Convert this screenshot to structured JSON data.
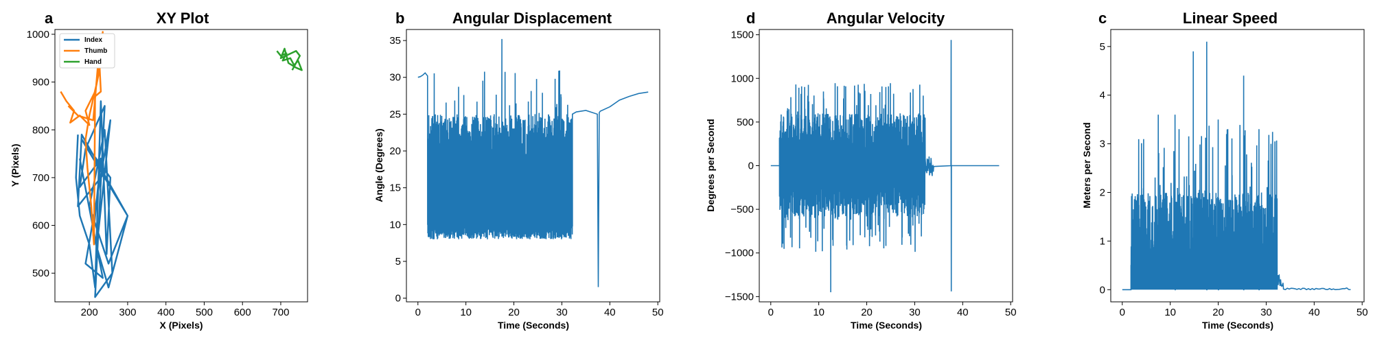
{
  "chart_data": [
    {
      "panel": "a",
      "type": "line",
      "title": "XY Plot",
      "xlabel": "X (Pixels)",
      "ylabel": "Y (Pixels)",
      "xlim": [
        110,
        770
      ],
      "ylim": [
        440,
        1010
      ],
      "xticks": [
        200,
        300,
        400,
        500,
        600,
        700
      ],
      "yticks": [
        500,
        600,
        700,
        800,
        900,
        1000
      ],
      "legend": "top-left",
      "series": [
        {
          "name": "Index",
          "color": "#1f77b4",
          "points": [
            [
              170,
              790
            ],
            [
              165,
              700
            ],
            [
              175,
              620
            ],
            [
              200,
              560
            ],
            [
              215,
              470
            ],
            [
              230,
              860
            ],
            [
              245,
              540
            ],
            [
              255,
              700
            ],
            [
              180,
              780
            ],
            [
              300,
              620
            ],
            [
              250,
              520
            ],
            [
              200,
              640
            ],
            [
              240,
              800
            ],
            [
              260,
              500
            ],
            [
              215,
              450
            ],
            [
              240,
              850
            ],
            [
              190,
              760
            ],
            [
              175,
              680
            ],
            [
              230,
              740
            ],
            [
              210,
              580
            ],
            [
              250,
              470
            ],
            [
              300,
              620
            ],
            [
              180,
              790
            ],
            [
              170,
              640
            ],
            [
              240,
              710
            ],
            [
              220,
              560
            ],
            [
              255,
              820
            ],
            [
              190,
              520
            ],
            [
              235,
              490
            ],
            [
              175,
              740
            ]
          ]
        },
        {
          "name": "Thumb",
          "color": "#ff7f0e",
          "points": [
            [
              125,
              880
            ],
            [
              140,
              860
            ],
            [
              160,
              840
            ],
            [
              150,
              815
            ],
            [
              175,
              830
            ],
            [
              200,
              810
            ],
            [
              190,
              840
            ],
            [
              215,
              880
            ],
            [
              230,
              940
            ],
            [
              235,
              1005
            ],
            [
              220,
              900
            ],
            [
              200,
              830
            ],
            [
              190,
              780
            ],
            [
              195,
              720
            ],
            [
              205,
              640
            ],
            [
              212,
              560
            ],
            [
              215,
              870
            ],
            [
              230,
              880
            ],
            [
              225,
              960
            ],
            [
              210,
              820
            ],
            [
              170,
              830
            ],
            [
              145,
              850
            ]
          ]
        },
        {
          "name": "Hand",
          "color": "#2ca02c",
          "points": [
            [
              690,
              965
            ],
            [
              700,
              955
            ],
            [
              715,
              960
            ],
            [
              705,
              945
            ],
            [
              725,
              950
            ],
            [
              735,
              935
            ],
            [
              745,
              945
            ],
            [
              755,
              925
            ],
            [
              740,
              930
            ],
            [
              720,
              940
            ],
            [
              710,
              970
            ],
            [
              700,
              950
            ],
            [
              740,
              965
            ],
            [
              750,
              955
            ],
            [
              730,
              925
            ]
          ]
        }
      ]
    },
    {
      "panel": "b",
      "type": "line",
      "title": "Angular Displacement",
      "xlabel": "Time (Seconds)",
      "ylabel": "Angle (Degrees)",
      "xlim": [
        -2.4,
        50.4
      ],
      "ylim": [
        -0.5,
        36.5
      ],
      "xticks": [
        0,
        10,
        20,
        30,
        40,
        50
      ],
      "yticks": [
        0,
        5,
        10,
        15,
        20,
        25,
        30,
        35
      ],
      "series": [
        {
          "name": "",
          "color": "#1f77b4",
          "pre": {
            "t": [
              0.0,
              0.5,
              1.0,
              1.5,
              2.0
            ],
            "y": [
              30.0,
              30.1,
              30.3,
              30.6,
              30.2
            ]
          },
          "osc": {
            "t_start": 2.0,
            "t_end": 32.2,
            "low": 8.0,
            "high": 23.0,
            "max": 35.2,
            "max_t": 17.5
          },
          "post": {
            "t": [
              32.2,
              33.0,
              35.0,
              37.4,
              37.6,
              37.8,
              38.0,
              40.0,
              42.0,
              44.0,
              46.0,
              48.0
            ],
            "y": [
              25.0,
              25.3,
              25.5,
              25.0,
              1.5,
              25.2,
              25.4,
              26.0,
              26.9,
              27.4,
              27.8,
              28.0
            ]
          }
        }
      ]
    },
    {
      "panel": "d",
      "type": "line",
      "title": "Angular Velocity",
      "xlabel": "Time (Seconds)",
      "ylabel": "Degrees per Second",
      "xlim": [
        -2.4,
        50.4
      ],
      "ylim": [
        -1560,
        1560
      ],
      "xticks": [
        0,
        10,
        20,
        30,
        40,
        50
      ],
      "yticks": [
        -1500,
        -1000,
        -500,
        0,
        500,
        1000,
        1500
      ],
      "series": [
        {
          "name": "",
          "color": "#1f77b4",
          "osc": {
            "t_start": 1.8,
            "t_end": 32.2,
            "low": -600,
            "high": 600,
            "max": 950,
            "min": -1450,
            "min_t": 12.5
          },
          "tail": {
            "t_start": 32.2,
            "t_end": 34.0,
            "amp": 120
          },
          "spike": {
            "t": 37.6,
            "max": 1440,
            "min": -1440
          },
          "t_end": 47.6
        }
      ]
    },
    {
      "panel": "c",
      "type": "line",
      "title": "Linear Speed",
      "xlabel": "Time (Seconds)",
      "ylabel": "Meters per Second",
      "xlim": [
        -2.4,
        50.4
      ],
      "ylim": [
        -0.25,
        5.35
      ],
      "xticks": [
        0,
        10,
        20,
        30,
        40,
        50
      ],
      "yticks": [
        0,
        1,
        2,
        3,
        4,
        5
      ],
      "series": [
        {
          "name": "",
          "color": "#1f77b4",
          "osc": {
            "t_start": 1.8,
            "t_end": 32.3,
            "base": 0.0,
            "dense": 1.6,
            "max": 5.1,
            "max_t": 17.6
          },
          "peaks": [
            [
              14.8,
              4.9
            ],
            [
              17.6,
              5.1
            ],
            [
              25.3,
              4.4
            ],
            [
              7.5,
              3.6
            ],
            [
              11.0,
              3.6
            ],
            [
              20.0,
              3.5
            ],
            [
              22.0,
              3.3
            ],
            [
              28.5,
              3.3
            ],
            [
              31.0,
              3.0
            ]
          ],
          "tail": {
            "t_start": 32.3,
            "t_end": 33.6,
            "amp": 0.35
          },
          "t_end": 47.6
        }
      ]
    }
  ]
}
